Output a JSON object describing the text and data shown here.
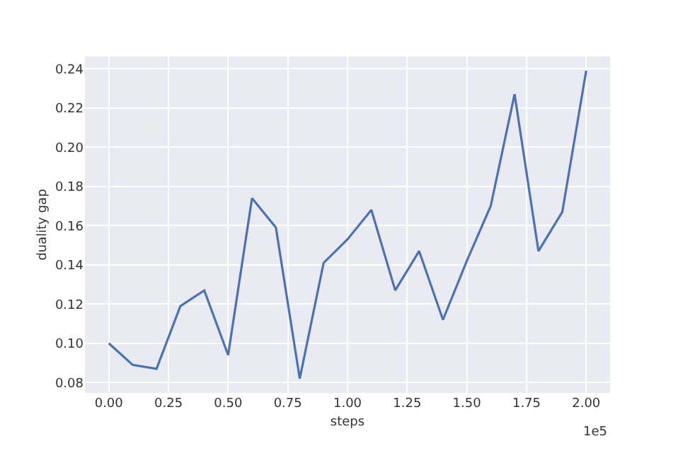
{
  "chart_data": {
    "type": "line",
    "xlabel": "steps",
    "ylabel": "duality gap",
    "x": [
      0,
      0.1,
      0.2,
      0.3,
      0.4,
      0.5,
      0.6,
      0.7,
      0.8,
      0.9,
      1.0,
      1.1,
      1.2,
      1.3,
      1.4,
      1.5,
      1.6,
      1.7,
      1.8,
      1.9,
      2.0
    ],
    "series": [
      {
        "color": "#4c72b0",
        "values": [
          0.1,
          0.089,
          0.087,
          0.119,
          0.127,
          0.094,
          0.174,
          0.159,
          0.082,
          0.141,
          0.153,
          0.168,
          0.127,
          0.147,
          0.112,
          0.142,
          0.17,
          0.227,
          0.147,
          0.167,
          0.239
        ]
      }
    ],
    "xlim": [
      -0.1,
      2.1
    ],
    "ylim": [
      0.0747,
      0.2462
    ],
    "xticks": [
      {
        "value": 0,
        "label": "0.00"
      },
      {
        "value": 0.25,
        "label": "0.25"
      },
      {
        "value": 0.5,
        "label": "0.50"
      },
      {
        "value": 0.75,
        "label": "0.75"
      },
      {
        "value": 1.0,
        "label": "1.00"
      },
      {
        "value": 1.25,
        "label": "1.25"
      },
      {
        "value": 1.5,
        "label": "1.50"
      },
      {
        "value": 1.75,
        "label": "1.75"
      },
      {
        "value": 2.0,
        "label": "2.00"
      }
    ],
    "yticks": [
      {
        "value": 0.08,
        "label": "0.08"
      },
      {
        "value": 0.1,
        "label": "0.10"
      },
      {
        "value": 0.12,
        "label": "0.12"
      },
      {
        "value": 0.14,
        "label": "0.14"
      },
      {
        "value": 0.16,
        "label": "0.16"
      },
      {
        "value": 0.18,
        "label": "0.18"
      },
      {
        "value": 0.2,
        "label": "0.20"
      },
      {
        "value": 0.22,
        "label": "0.22"
      },
      {
        "value": 0.24,
        "label": "0.24"
      }
    ],
    "annotations": [
      "1e5"
    ],
    "grid": true,
    "marker": "none",
    "line_style": "solid"
  }
}
